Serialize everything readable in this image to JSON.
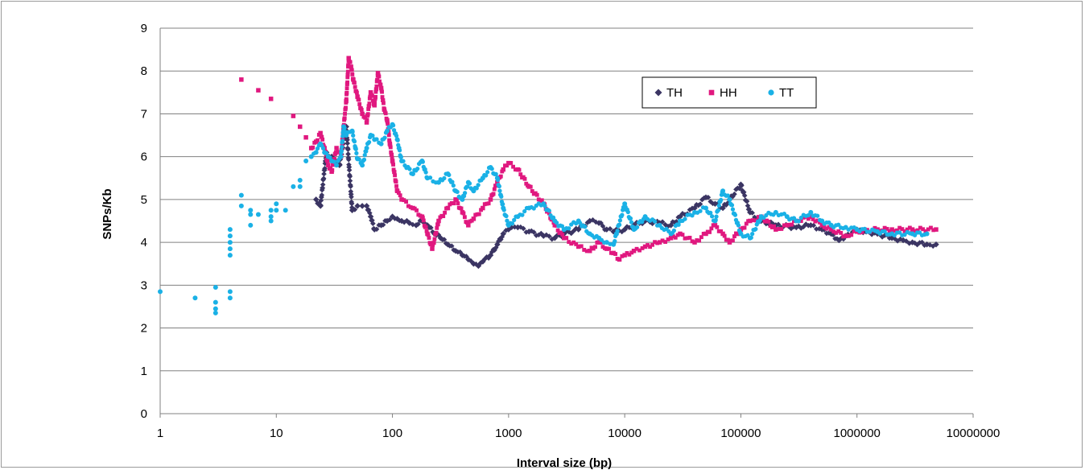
{
  "chart_data": {
    "type": "scatter",
    "title": "",
    "xlabel": "Interval size (bp)",
    "ylabel": "SNPs/Kb",
    "x_scale": "log10",
    "xlim": [
      1,
      10000000
    ],
    "ylim": [
      0,
      9
    ],
    "x_ticks": [
      "1",
      "10",
      "100",
      "1000",
      "10000",
      "100000",
      "1000000",
      "10000000"
    ],
    "y_ticks": [
      "0",
      "1",
      "2",
      "3",
      "4",
      "5",
      "6",
      "7",
      "8",
      "9"
    ],
    "grid": "horizontal",
    "legend_position": "top-right",
    "series": [
      {
        "name": "TH",
        "marker": "diamond",
        "color": "#3b3563",
        "points": [
          [
            22,
            5.0
          ],
          [
            24,
            4.85
          ],
          [
            27,
            6.1
          ],
          [
            30,
            6.0
          ],
          [
            35,
            5.8
          ],
          [
            40,
            6.7
          ],
          [
            45,
            4.75
          ],
          [
            50,
            4.85
          ],
          [
            55,
            4.85
          ],
          [
            60,
            4.85
          ],
          [
            65,
            4.6
          ],
          [
            70,
            4.3
          ],
          [
            80,
            4.4
          ],
          [
            90,
            4.5
          ],
          [
            100,
            4.6
          ],
          [
            110,
            4.55
          ],
          [
            120,
            4.5
          ],
          [
            140,
            4.45
          ],
          [
            160,
            4.4
          ],
          [
            180,
            4.5
          ],
          [
            200,
            4.4
          ],
          [
            230,
            4.2
          ],
          [
            260,
            4.1
          ],
          [
            300,
            3.95
          ],
          [
            350,
            3.8
          ],
          [
            400,
            3.7
          ],
          [
            450,
            3.6
          ],
          [
            500,
            3.5
          ],
          [
            550,
            3.45
          ],
          [
            600,
            3.55
          ],
          [
            700,
            3.7
          ],
          [
            800,
            3.95
          ],
          [
            900,
            4.2
          ],
          [
            1000,
            4.3
          ],
          [
            1200,
            4.35
          ],
          [
            1500,
            4.25
          ],
          [
            2000,
            4.15
          ],
          [
            2500,
            4.1
          ],
          [
            3000,
            4.2
          ],
          [
            4000,
            4.3
          ],
          [
            5000,
            4.5
          ],
          [
            6000,
            4.45
          ],
          [
            7000,
            4.3
          ],
          [
            8000,
            4.25
          ],
          [
            10000,
            4.3
          ],
          [
            12000,
            4.4
          ],
          [
            15000,
            4.5
          ],
          [
            20000,
            4.45
          ],
          [
            25000,
            4.4
          ],
          [
            30000,
            4.6
          ],
          [
            40000,
            4.8
          ],
          [
            50000,
            5.05
          ],
          [
            60000,
            4.9
          ],
          [
            70000,
            4.8
          ],
          [
            80000,
            5.0
          ],
          [
            100000,
            5.35
          ],
          [
            120000,
            4.7
          ],
          [
            150000,
            4.5
          ],
          [
            200000,
            4.4
          ],
          [
            300000,
            4.35
          ],
          [
            400000,
            4.4
          ],
          [
            500000,
            4.3
          ],
          [
            600000,
            4.2
          ],
          [
            700000,
            4.05
          ],
          [
            800000,
            4.15
          ],
          [
            1000000,
            4.3
          ],
          [
            1200000,
            4.25
          ],
          [
            1500000,
            4.2
          ],
          [
            2000000,
            4.1
          ],
          [
            2500000,
            4.05
          ],
          [
            3000000,
            4.0
          ],
          [
            4000000,
            3.95
          ],
          [
            4800000,
            3.95
          ]
        ]
      },
      {
        "name": "HH",
        "marker": "square",
        "color": "#e0187f",
        "points": [
          [
            5,
            7.8
          ],
          [
            7,
            7.55
          ],
          [
            9,
            7.35
          ],
          [
            14,
            6.95
          ],
          [
            16,
            6.7
          ],
          [
            18,
            6.45
          ],
          [
            20,
            6.2
          ],
          [
            22,
            6.35
          ],
          [
            24,
            6.55
          ],
          [
            26,
            6.2
          ],
          [
            28,
            5.8
          ],
          [
            30,
            5.65
          ],
          [
            33,
            6.2
          ],
          [
            36,
            6.0
          ],
          [
            38,
            6.7
          ],
          [
            40,
            7.3
          ],
          [
            42,
            8.3
          ],
          [
            44,
            8.1
          ],
          [
            46,
            7.8
          ],
          [
            50,
            7.4
          ],
          [
            55,
            7.0
          ],
          [
            60,
            6.8
          ],
          [
            65,
            7.5
          ],
          [
            70,
            7.2
          ],
          [
            75,
            7.95
          ],
          [
            80,
            7.6
          ],
          [
            85,
            7.1
          ],
          [
            90,
            6.85
          ],
          [
            95,
            6.3
          ],
          [
            100,
            5.9
          ],
          [
            110,
            5.2
          ],
          [
            120,
            5.0
          ],
          [
            150,
            4.8
          ],
          [
            180,
            4.6
          ],
          [
            200,
            4.2
          ],
          [
            220,
            3.85
          ],
          [
            250,
            4.5
          ],
          [
            300,
            4.8
          ],
          [
            350,
            5.0
          ],
          [
            400,
            4.7
          ],
          [
            450,
            4.4
          ],
          [
            500,
            4.55
          ],
          [
            600,
            4.8
          ],
          [
            700,
            5.0
          ],
          [
            800,
            5.4
          ],
          [
            900,
            5.7
          ],
          [
            1000,
            5.85
          ],
          [
            1200,
            5.7
          ],
          [
            1500,
            5.3
          ],
          [
            2000,
            4.9
          ],
          [
            2500,
            4.4
          ],
          [
            3000,
            4.1
          ],
          [
            4000,
            3.9
          ],
          [
            5000,
            3.8
          ],
          [
            6000,
            4.0
          ],
          [
            7000,
            3.85
          ],
          [
            8000,
            3.75
          ],
          [
            9000,
            3.6
          ],
          [
            10000,
            3.7
          ],
          [
            12000,
            3.8
          ],
          [
            15000,
            3.9
          ],
          [
            20000,
            4.0
          ],
          [
            25000,
            4.1
          ],
          [
            30000,
            4.2
          ],
          [
            40000,
            4.0
          ],
          [
            50000,
            4.2
          ],
          [
            60000,
            4.4
          ],
          [
            70000,
            4.2
          ],
          [
            80000,
            4.0
          ],
          [
            100000,
            4.3
          ],
          [
            120000,
            4.5
          ],
          [
            150000,
            4.6
          ],
          [
            200000,
            4.3
          ],
          [
            250000,
            4.4
          ],
          [
            300000,
            4.5
          ],
          [
            400000,
            4.6
          ],
          [
            500000,
            4.4
          ],
          [
            600000,
            4.3
          ],
          [
            800000,
            4.15
          ],
          [
            1000000,
            4.25
          ],
          [
            1500000,
            4.3
          ],
          [
            2000000,
            4.3
          ],
          [
            3000000,
            4.3
          ],
          [
            4800000,
            4.3
          ]
        ]
      },
      {
        "name": "TT",
        "marker": "circle",
        "color": "#1ab1e6",
        "points": [
          [
            1,
            2.85
          ],
          [
            2,
            2.7
          ],
          [
            3,
            2.35
          ],
          [
            3,
            2.45
          ],
          [
            3,
            2.6
          ],
          [
            3,
            2.95
          ],
          [
            4,
            2.7
          ],
          [
            4,
            2.85
          ],
          [
            4,
            3.7
          ],
          [
            4,
            3.85
          ],
          [
            4,
            4.0
          ],
          [
            4,
            4.15
          ],
          [
            4,
            4.3
          ],
          [
            5,
            4.85
          ],
          [
            5,
            5.1
          ],
          [
            6,
            4.4
          ],
          [
            6,
            4.65
          ],
          [
            6,
            4.75
          ],
          [
            7,
            4.65
          ],
          [
            9,
            4.5
          ],
          [
            9,
            4.6
          ],
          [
            9,
            4.75
          ],
          [
            10,
            4.75
          ],
          [
            10,
            4.9
          ],
          [
            12,
            4.75
          ],
          [
            14,
            5.3
          ],
          [
            16,
            5.3
          ],
          [
            16,
            5.45
          ],
          [
            18,
            5.9
          ],
          [
            20,
            6.0
          ],
          [
            22,
            6.1
          ],
          [
            24,
            6.3
          ],
          [
            26,
            6.1
          ],
          [
            28,
            6.0
          ],
          [
            30,
            5.9
          ],
          [
            33,
            5.8
          ],
          [
            36,
            6.0
          ],
          [
            38,
            6.7
          ],
          [
            40,
            6.5
          ],
          [
            45,
            6.6
          ],
          [
            48,
            6.2
          ],
          [
            50,
            5.95
          ],
          [
            55,
            5.8
          ],
          [
            60,
            6.2
          ],
          [
            65,
            6.5
          ],
          [
            70,
            6.4
          ],
          [
            80,
            6.3
          ],
          [
            90,
            6.6
          ],
          [
            100,
            6.75
          ],
          [
            110,
            6.4
          ],
          [
            120,
            5.9
          ],
          [
            150,
            5.6
          ],
          [
            180,
            5.9
          ],
          [
            200,
            5.5
          ],
          [
            250,
            5.4
          ],
          [
            300,
            5.6
          ],
          [
            350,
            5.2
          ],
          [
            400,
            5.0
          ],
          [
            450,
            5.4
          ],
          [
            500,
            5.2
          ],
          [
            600,
            5.5
          ],
          [
            700,
            5.75
          ],
          [
            800,
            5.5
          ],
          [
            900,
            4.8
          ],
          [
            1000,
            4.4
          ],
          [
            1200,
            4.6
          ],
          [
            1500,
            4.8
          ],
          [
            2000,
            4.9
          ],
          [
            2500,
            4.5
          ],
          [
            3000,
            4.3
          ],
          [
            4000,
            4.5
          ],
          [
            5000,
            4.2
          ],
          [
            6000,
            4.1
          ],
          [
            7000,
            4.0
          ],
          [
            8000,
            3.95
          ],
          [
            10000,
            4.9
          ],
          [
            12000,
            4.3
          ],
          [
            15000,
            4.6
          ],
          [
            20000,
            4.4
          ],
          [
            25000,
            4.2
          ],
          [
            30000,
            4.5
          ],
          [
            40000,
            4.7
          ],
          [
            50000,
            4.8
          ],
          [
            60000,
            4.5
          ],
          [
            70000,
            5.2
          ],
          [
            80000,
            5.0
          ],
          [
            100000,
            4.2
          ],
          [
            120000,
            4.1
          ],
          [
            150000,
            4.6
          ],
          [
            200000,
            4.7
          ],
          [
            250000,
            4.6
          ],
          [
            300000,
            4.5
          ],
          [
            400000,
            4.7
          ],
          [
            500000,
            4.5
          ],
          [
            600000,
            4.4
          ],
          [
            800000,
            4.35
          ],
          [
            1000000,
            4.3
          ],
          [
            1500000,
            4.25
          ],
          [
            2000000,
            4.2
          ],
          [
            3000000,
            4.2
          ],
          [
            4000000,
            4.2
          ]
        ]
      }
    ]
  }
}
